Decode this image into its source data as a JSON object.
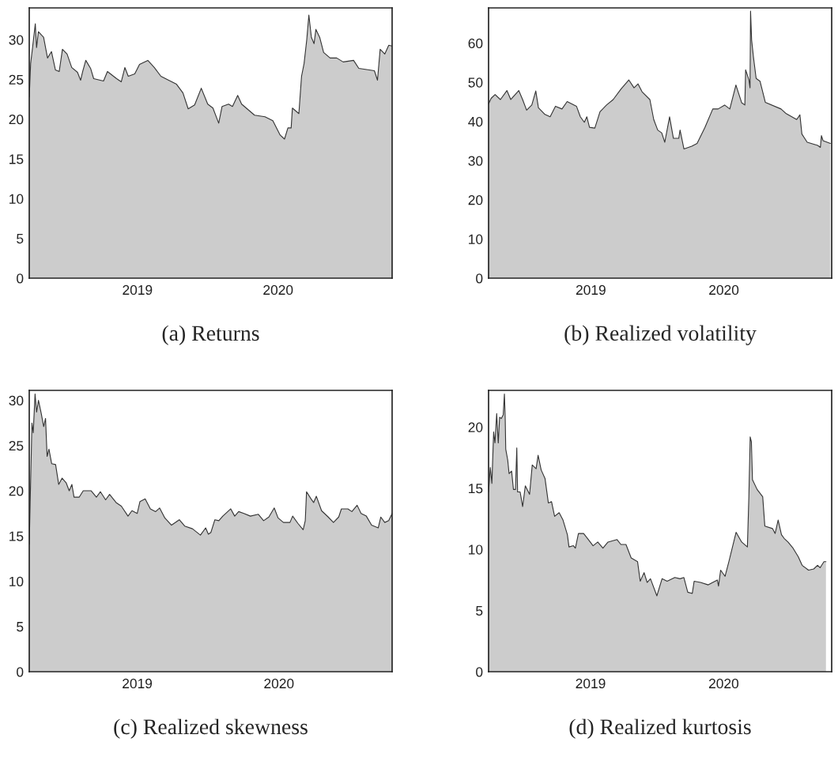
{
  "chart_data": [
    {
      "type": "area",
      "title": "(a) Returns",
      "color": "#cccccc",
      "xlim": [
        2018.231,
        2020.811
      ],
      "xticks": [
        2019,
        2020
      ],
      "ylim": [
        0,
        34
      ],
      "yticks": [
        0,
        5,
        10,
        15,
        20,
        25,
        30
      ],
      "x": [
        2018.231,
        2018.241,
        2018.259,
        2018.274,
        2018.283,
        2018.296,
        2018.333,
        2018.361,
        2018.389,
        2018.417,
        2018.444,
        2018.467,
        2018.5,
        2018.533,
        2018.574,
        2018.596,
        2018.611,
        2018.633,
        2018.667,
        2018.689,
        2018.759,
        2018.787,
        2018.852,
        2018.885,
        2018.911,
        2018.935,
        2018.981,
        2019.015,
        2019.074,
        2019.12,
        2019.167,
        2019.222,
        2019.278,
        2019.324,
        2019.361,
        2019.407,
        2019.454,
        2019.5,
        2019.537,
        2019.578,
        2019.602,
        2019.648,
        2019.676,
        2019.713,
        2019.741,
        2019.833,
        2019.907,
        2019.963,
        2020.015,
        2020.046,
        2020.07,
        2020.093,
        2020.102,
        2020.148,
        2020.167,
        2020.185,
        2020.204,
        2020.219,
        2020.237,
        2020.256,
        2020.269,
        2020.296,
        2020.324,
        2020.37,
        2020.417,
        2020.463,
        2020.537,
        2020.574,
        2020.685,
        2020.707,
        2020.726,
        2020.759,
        2020.787,
        2020.811
      ],
      "values": [
        22.8,
        27.0,
        29.7,
        32.0,
        29.0,
        31.0,
        30.3,
        27.7,
        28.5,
        26.2,
        26.0,
        28.8,
        28.2,
        26.5,
        25.9,
        24.9,
        26.0,
        27.4,
        26.4,
        25.1,
        24.8,
        26.0,
        25.1,
        24.7,
        26.5,
        25.4,
        25.7,
        26.9,
        27.4,
        26.5,
        25.4,
        24.9,
        24.4,
        23.3,
        21.3,
        21.8,
        23.9,
        21.9,
        21.4,
        19.5,
        21.6,
        21.9,
        21.6,
        23.0,
        21.9,
        20.5,
        20.3,
        19.8,
        18.0,
        17.5,
        18.9,
        18.9,
        21.4,
        20.7,
        25.4,
        27.0,
        30.0,
        33.1,
        30.3,
        29.5,
        31.3,
        30.3,
        28.4,
        27.7,
        27.7,
        27.2,
        27.4,
        26.4,
        26.1,
        24.9,
        28.8,
        28.2,
        29.3,
        29.2
      ]
    },
    {
      "type": "area",
      "title": "(b) Realized volatility",
      "color": "#cccccc",
      "xlim": [
        2018.231,
        2020.811
      ],
      "xticks": [
        2019,
        2020
      ],
      "ylim": [
        0,
        69
      ],
      "yticks": [
        0,
        10,
        20,
        30,
        40,
        50,
        60
      ],
      "x": [
        2018.231,
        2018.25,
        2018.28,
        2018.32,
        2018.369,
        2018.398,
        2018.458,
        2018.487,
        2018.517,
        2018.556,
        2018.586,
        2018.606,
        2018.655,
        2018.694,
        2018.734,
        2018.783,
        2018.822,
        2018.892,
        2018.921,
        2018.951,
        2018.97,
        2018.99,
        2019.03,
        2019.069,
        2019.118,
        2019.168,
        2019.227,
        2019.286,
        2019.325,
        2019.355,
        2019.385,
        2019.444,
        2019.473,
        2019.503,
        2019.533,
        2019.556,
        2019.592,
        2019.621,
        2019.661,
        2019.671,
        2019.7,
        2019.759,
        2019.799,
        2019.858,
        2019.917,
        2019.957,
        2020.006,
        2020.045,
        2020.091,
        2020.134,
        2020.158,
        2020.164,
        2020.189,
        2020.197,
        2020.201,
        2020.209,
        2020.223,
        2020.243,
        2020.272,
        2020.312,
        2020.43,
        2020.469,
        2020.548,
        2020.572,
        2020.587,
        2020.627,
        2020.706,
        2020.726,
        2020.734,
        2020.746,
        2020.801
      ],
      "values": [
        44.5,
        45.9,
        46.9,
        45.6,
        47.9,
        45.6,
        47.9,
        45.6,
        42.9,
        44.2,
        47.8,
        43.5,
        41.8,
        41.2,
        43.9,
        43.2,
        45.1,
        43.9,
        41.2,
        39.8,
        41.2,
        38.5,
        38.3,
        42.5,
        44.2,
        45.6,
        48.3,
        50.6,
        48.6,
        49.6,
        47.6,
        45.6,
        40.5,
        37.8,
        37.1,
        34.7,
        41.2,
        35.7,
        35.7,
        37.8,
        33.0,
        33.7,
        34.4,
        38.5,
        43.2,
        43.2,
        44.2,
        43.2,
        49.3,
        44.8,
        44.2,
        53.2,
        50.6,
        48.6,
        68.2,
        60.8,
        56.4,
        51.0,
        50.3,
        44.9,
        43.2,
        42.0,
        40.5,
        41.7,
        36.8,
        34.7,
        33.9,
        33.4,
        36.4,
        35.1,
        34.4
      ]
    },
    {
      "type": "area",
      "title": "(c) Realized skewness",
      "color": "#cccccc",
      "xlim": [
        2018.238,
        2020.799
      ],
      "xticks": [
        2019,
        2020
      ],
      "ylim": [
        0,
        31.1
      ],
      "yticks": [
        0,
        5,
        10,
        15,
        20,
        25,
        30
      ],
      "x": [
        2018.238,
        2018.257,
        2018.266,
        2018.279,
        2018.29,
        2018.303,
        2018.322,
        2018.34,
        2018.353,
        2018.364,
        2018.377,
        2018.396,
        2018.424,
        2018.446,
        2018.47,
        2018.498,
        2018.52,
        2018.539,
        2018.554,
        2018.591,
        2018.619,
        2018.675,
        2018.712,
        2018.74,
        2018.777,
        2018.805,
        2018.851,
        2018.888,
        2018.935,
        2018.963,
        2019.0,
        2019.019,
        2019.056,
        2019.093,
        2019.13,
        2019.158,
        2019.195,
        2019.242,
        2019.297,
        2019.335,
        2019.39,
        2019.446,
        2019.483,
        2019.502,
        2019.52,
        2019.548,
        2019.576,
        2019.604,
        2019.66,
        2019.688,
        2019.716,
        2019.753,
        2019.799,
        2019.855,
        2019.892,
        2019.929,
        2019.967,
        2019.994,
        2020.032,
        2020.078,
        2020.097,
        2020.134,
        2020.171,
        2020.186,
        2020.195,
        2020.227,
        2020.245,
        2020.264,
        2020.301,
        2020.348,
        2020.385,
        2020.422,
        2020.441,
        2020.487,
        2020.515,
        2020.552,
        2020.58,
        2020.617,
        2020.654,
        2020.701,
        2020.719,
        2020.747,
        2020.775,
        2020.799
      ],
      "values": [
        14.1,
        27.5,
        26.4,
        30.7,
        28.7,
        30.0,
        28.6,
        27.1,
        28.0,
        23.8,
        24.6,
        23.0,
        22.9,
        20.7,
        21.4,
        20.9,
        20.0,
        20.7,
        19.3,
        19.3,
        20.0,
        20.0,
        19.3,
        19.9,
        19.0,
        19.6,
        18.7,
        18.3,
        17.2,
        17.8,
        17.5,
        18.8,
        19.1,
        18.0,
        17.7,
        18.1,
        17.0,
        16.2,
        16.8,
        16.1,
        15.8,
        15.1,
        15.9,
        15.2,
        15.4,
        16.8,
        16.7,
        17.2,
        18.0,
        17.2,
        17.7,
        17.5,
        17.2,
        17.4,
        16.7,
        17.1,
        18.1,
        17.0,
        16.5,
        16.5,
        17.2,
        16.4,
        15.7,
        16.7,
        19.9,
        19.1,
        18.7,
        19.4,
        17.8,
        17.1,
        16.5,
        17.1,
        18.0,
        18.0,
        17.7,
        18.4,
        17.5,
        17.2,
        16.2,
        15.9,
        17.1,
        16.5,
        16.7,
        17.5
      ]
    },
    {
      "type": "area",
      "title": "(d) Realized kurtosis",
      "color": "#cccccc",
      "xlim": [
        2018.234,
        2020.811
      ],
      "xticks": [
        2019,
        2020
      ],
      "ylim": [
        0,
        23
      ],
      "yticks": [
        0,
        5,
        10,
        15,
        20
      ],
      "x": [
        2018.234,
        2018.247,
        2018.259,
        2018.272,
        2018.282,
        2018.295,
        2018.307,
        2018.317,
        2018.33,
        2018.344,
        2018.353,
        2018.359,
        2018.363,
        2018.378,
        2018.388,
        2018.407,
        2018.421,
        2018.436,
        2018.446,
        2018.452,
        2018.471,
        2018.49,
        2018.51,
        2018.542,
        2018.562,
        2018.591,
        2018.606,
        2018.629,
        2018.658,
        2018.683,
        2018.707,
        2018.73,
        2018.764,
        2018.793,
        2018.826,
        2018.838,
        2018.871,
        2018.886,
        2018.909,
        2018.948,
        2018.977,
        2019.019,
        2019.054,
        2019.093,
        2019.131,
        2019.199,
        2019.228,
        2019.266,
        2019.305,
        2019.353,
        2019.373,
        2019.402,
        2019.425,
        2019.45,
        2019.498,
        2019.537,
        2019.575,
        2019.633,
        2019.672,
        2019.701,
        2019.73,
        2019.764,
        2019.778,
        2019.826,
        2019.884,
        2019.952,
        2019.961,
        2019.977,
        2020.01,
        2020.039,
        2020.093,
        2020.135,
        2020.178,
        2020.189,
        2020.199,
        2020.208,
        2020.216,
        2020.251,
        2020.293,
        2020.309,
        2020.367,
        2020.386,
        2020.409,
        2020.434,
        2020.454,
        2020.483,
        2020.521,
        2020.56,
        2020.589,
        2020.637,
        2020.676,
        2020.705,
        2020.724,
        2020.753,
        2020.768
      ],
      "values": [
        14.7,
        16.7,
        15.4,
        19.6,
        18.7,
        21.1,
        18.7,
        20.8,
        20.7,
        21.0,
        22.7,
        20.7,
        18.2,
        17.3,
        16.2,
        16.4,
        14.9,
        14.9,
        18.3,
        14.7,
        14.7,
        13.5,
        15.2,
        14.5,
        16.9,
        16.6,
        17.7,
        16.5,
        15.8,
        13.8,
        13.9,
        12.7,
        13.0,
        12.4,
        11.2,
        10.2,
        10.3,
        10.1,
        11.3,
        11.3,
        10.9,
        10.3,
        10.6,
        10.1,
        10.6,
        10.8,
        10.4,
        10.4,
        9.3,
        9.0,
        7.4,
        8.1,
        7.3,
        7.6,
        6.2,
        7.6,
        7.4,
        7.7,
        7.6,
        7.7,
        6.5,
        6.4,
        7.4,
        7.3,
        7.1,
        7.5,
        7.0,
        8.3,
        7.8,
        9.0,
        11.4,
        10.6,
        10.2,
        14.3,
        19.2,
        18.8,
        15.7,
        14.9,
        14.3,
        11.9,
        11.7,
        11.3,
        12.4,
        11.2,
        10.9,
        10.6,
        10.1,
        9.4,
        8.7,
        8.3,
        8.4,
        8.7,
        8.5,
        9.0,
        9.0
      ]
    }
  ]
}
